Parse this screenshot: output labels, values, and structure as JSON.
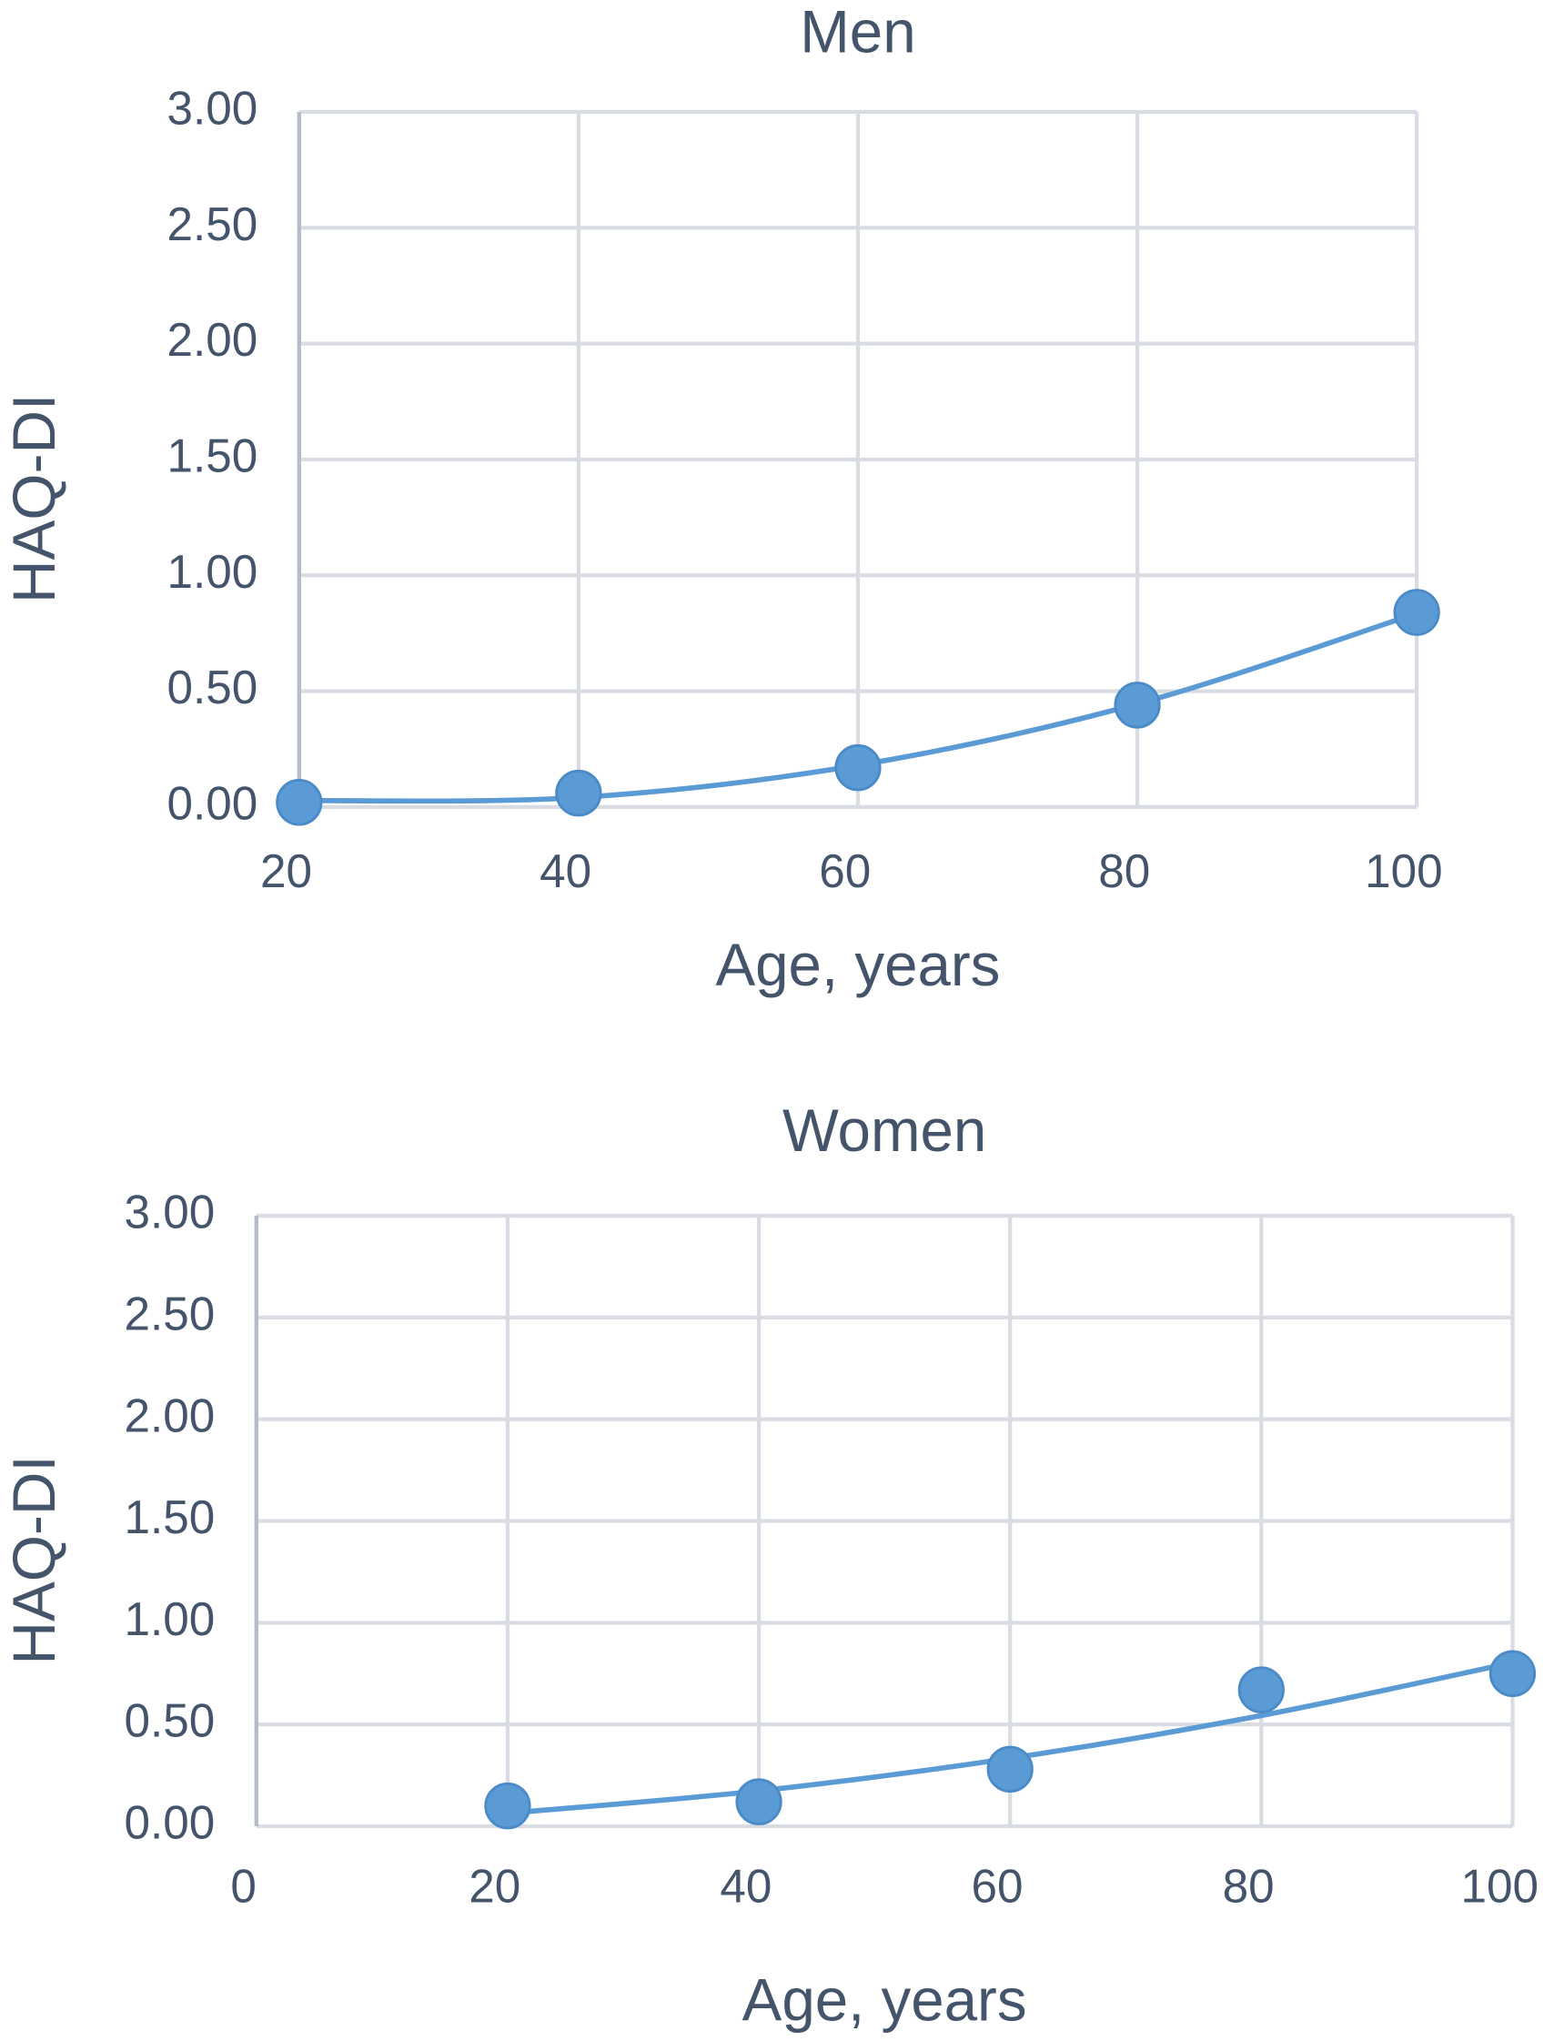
{
  "chart_data": [
    {
      "type": "scatter",
      "title": "Men",
      "x_label": "Age, years",
      "y_label": "HAQ-DI",
      "x": [
        20,
        40,
        60,
        80,
        100
      ],
      "series": [
        {
          "color": "#5b9bd5",
          "values": [
            0.02,
            0.06,
            0.17,
            0.44,
            0.84
          ]
        }
      ],
      "trendline": {
        "type": "polynomial",
        "order": 2
      },
      "xlim": [
        20,
        100
      ],
      "xticks": [
        20,
        40,
        60,
        80,
        100
      ],
      "ylim": [
        0,
        3
      ],
      "yticks": [
        {
          "value": 0,
          "label": "0.00"
        },
        {
          "value": 0.5,
          "label": "0.50"
        },
        {
          "value": 1,
          "label": "1.00"
        },
        {
          "value": 1.5,
          "label": "1.50"
        },
        {
          "value": 2,
          "label": "2.00"
        },
        {
          "value": 2.5,
          "label": "2.50"
        },
        {
          "value": 3,
          "label": "3.00"
        }
      ],
      "grid": true
    },
    {
      "type": "scatter",
      "title": "Women",
      "x_label": "Age, years",
      "y_label": "HAQ-DI",
      "x": [
        20,
        40,
        60,
        80,
        100
      ],
      "series": [
        {
          "color": "#5b9bd5",
          "values": [
            0.1,
            0.12,
            0.28,
            0.67,
            0.75
          ]
        }
      ],
      "trendline": {
        "type": "polynomial",
        "order": 2
      },
      "xlim": [
        0,
        100
      ],
      "xticks": [
        0,
        20,
        40,
        60,
        80,
        100
      ],
      "ylim": [
        0,
        3
      ],
      "yticks": [
        {
          "value": 0,
          "label": "0.00"
        },
        {
          "value": 0.5,
          "label": "0.50"
        },
        {
          "value": 1,
          "label": "1.00"
        },
        {
          "value": 1.5,
          "label": "1.50"
        },
        {
          "value": 2,
          "label": "2.00"
        },
        {
          "value": 2.5,
          "label": "2.50"
        },
        {
          "value": 3,
          "label": "3.00"
        }
      ],
      "grid": true
    }
  ]
}
